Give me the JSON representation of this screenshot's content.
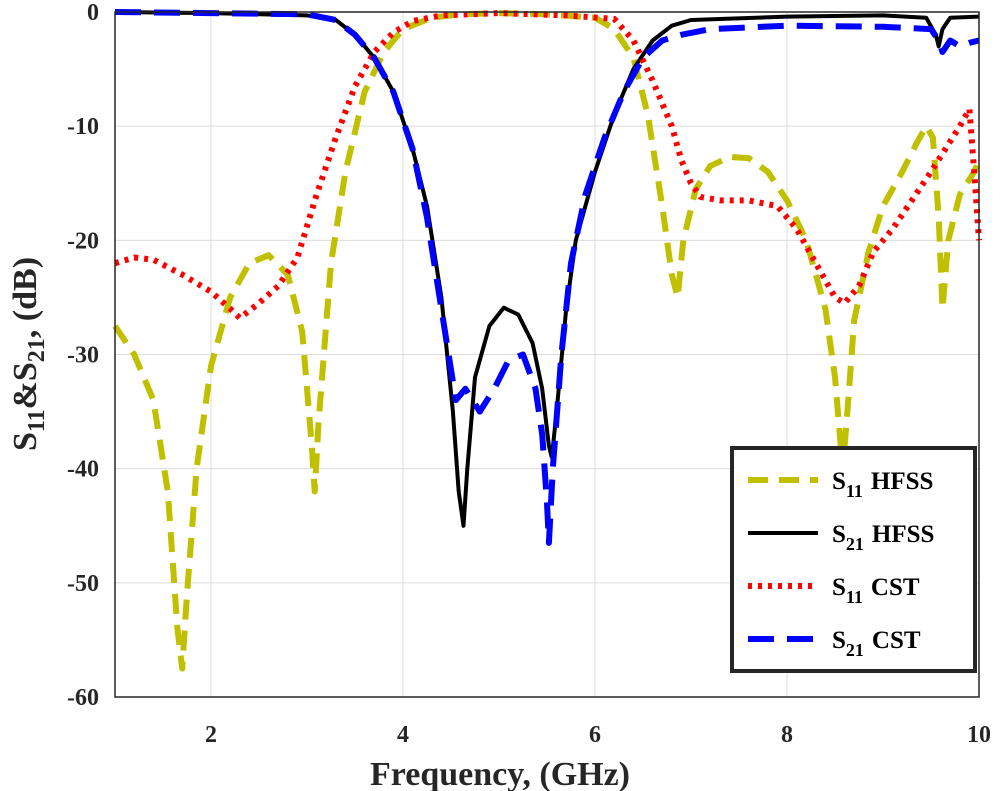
{
  "chart_data": {
    "type": "line",
    "title": "",
    "xlabel": "Frequency, (GHz)",
    "ylabel": {
      "base1": "S",
      "sub1": "11",
      "mid": "&S",
      "sub2": "21",
      "tail": ", (dB)"
    },
    "xlim": [
      1,
      10
    ],
    "ylim": [
      -60,
      0
    ],
    "xticks": [
      2,
      4,
      6,
      8,
      10
    ],
    "yticks": [
      0,
      -10,
      -20,
      -30,
      -40,
      -50,
      -60
    ],
    "grid": true,
    "legend_position": "bottom-right",
    "series": [
      {
        "name": "S11 HFSS",
        "base": "S",
        "sub": "11",
        "solver": "HFSS",
        "color": "#c0c000",
        "style": "dashed",
        "points": [
          [
            1.0,
            -27.5
          ],
          [
            1.2,
            -30
          ],
          [
            1.4,
            -34
          ],
          [
            1.55,
            -42
          ],
          [
            1.65,
            -54
          ],
          [
            1.7,
            -57.5
          ],
          [
            1.75,
            -51
          ],
          [
            1.85,
            -40
          ],
          [
            2.0,
            -31
          ],
          [
            2.2,
            -25
          ],
          [
            2.4,
            -22
          ],
          [
            2.6,
            -21.3
          ],
          [
            2.8,
            -23
          ],
          [
            2.95,
            -28
          ],
          [
            3.05,
            -38
          ],
          [
            3.08,
            -42
          ],
          [
            3.12,
            -36
          ],
          [
            3.25,
            -22
          ],
          [
            3.4,
            -14
          ],
          [
            3.6,
            -7
          ],
          [
            3.8,
            -3.5
          ],
          [
            4.0,
            -1.5
          ],
          [
            4.3,
            -0.5
          ],
          [
            4.6,
            -0.2
          ],
          [
            5.0,
            -0.1
          ],
          [
            5.5,
            -0.2
          ],
          [
            6.0,
            -0.5
          ],
          [
            6.2,
            -1.5
          ],
          [
            6.4,
            -4
          ],
          [
            6.55,
            -9
          ],
          [
            6.7,
            -17
          ],
          [
            6.8,
            -23
          ],
          [
            6.86,
            -25
          ],
          [
            6.92,
            -20
          ],
          [
            7.05,
            -15.5
          ],
          [
            7.2,
            -13.5
          ],
          [
            7.4,
            -12.7
          ],
          [
            7.6,
            -12.8
          ],
          [
            7.8,
            -14
          ],
          [
            8.0,
            -16.5
          ],
          [
            8.2,
            -20
          ],
          [
            8.4,
            -26
          ],
          [
            8.5,
            -32
          ],
          [
            8.58,
            -40
          ],
          [
            8.62,
            -36
          ],
          [
            8.7,
            -27
          ],
          [
            8.85,
            -21
          ],
          [
            9.0,
            -17
          ],
          [
            9.2,
            -14
          ],
          [
            9.35,
            -11.5
          ],
          [
            9.45,
            -10
          ],
          [
            9.52,
            -11
          ],
          [
            9.58,
            -18
          ],
          [
            9.62,
            -26
          ],
          [
            9.68,
            -20
          ],
          [
            9.8,
            -16
          ],
          [
            9.95,
            -14
          ],
          [
            10.0,
            -13
          ]
        ]
      },
      {
        "name": "S21 HFSS",
        "base": "S",
        "sub": "21",
        "solver": "HFSS",
        "color": "#000000",
        "style": "solid",
        "points": [
          [
            1.0,
            0
          ],
          [
            2.0,
            -0.1
          ],
          [
            3.0,
            -0.3
          ],
          [
            3.3,
            -0.7
          ],
          [
            3.5,
            -2
          ],
          [
            3.7,
            -4
          ],
          [
            3.9,
            -7
          ],
          [
            4.1,
            -12
          ],
          [
            4.25,
            -17
          ],
          [
            4.4,
            -25
          ],
          [
            4.52,
            -35
          ],
          [
            4.58,
            -42
          ],
          [
            4.63,
            -45
          ],
          [
            4.67,
            -40
          ],
          [
            4.75,
            -32
          ],
          [
            4.9,
            -27.5
          ],
          [
            5.05,
            -25.9
          ],
          [
            5.2,
            -26.5
          ],
          [
            5.35,
            -29
          ],
          [
            5.45,
            -33
          ],
          [
            5.52,
            -38
          ],
          [
            5.55,
            -39
          ],
          [
            5.6,
            -35
          ],
          [
            5.7,
            -26
          ],
          [
            5.8,
            -20
          ],
          [
            6.0,
            -14
          ],
          [
            6.2,
            -9
          ],
          [
            6.4,
            -5
          ],
          [
            6.6,
            -2.5
          ],
          [
            6.8,
            -1.2
          ],
          [
            7.0,
            -0.7
          ],
          [
            8.0,
            -0.4
          ],
          [
            9.0,
            -0.3
          ],
          [
            9.45,
            -0.5
          ],
          [
            9.55,
            -2
          ],
          [
            9.58,
            -3
          ],
          [
            9.62,
            -1.5
          ],
          [
            9.7,
            -0.5
          ],
          [
            10.0,
            -0.4
          ]
        ]
      },
      {
        "name": "S11 CST",
        "base": "S",
        "sub": "11",
        "solver": "CST",
        "color": "#ff0000",
        "style": "dotted",
        "points": [
          [
            1.0,
            -22
          ],
          [
            1.2,
            -21.5
          ],
          [
            1.4,
            -21.7
          ],
          [
            1.7,
            -23
          ],
          [
            2.0,
            -24.5
          ],
          [
            2.2,
            -26
          ],
          [
            2.3,
            -26.8
          ],
          [
            2.5,
            -25.5
          ],
          [
            2.7,
            -24
          ],
          [
            2.9,
            -21.5
          ],
          [
            3.1,
            -16
          ],
          [
            3.3,
            -11
          ],
          [
            3.5,
            -6.5
          ],
          [
            3.7,
            -3.5
          ],
          [
            3.9,
            -1.8
          ],
          [
            4.1,
            -0.8
          ],
          [
            4.4,
            -0.3
          ],
          [
            5.0,
            -0.1
          ],
          [
            5.7,
            -0.3
          ],
          [
            6.2,
            -0.6
          ],
          [
            6.4,
            -2.5
          ],
          [
            6.6,
            -6
          ],
          [
            6.8,
            -10
          ],
          [
            6.9,
            -13
          ],
          [
            7.0,
            -15
          ],
          [
            7.1,
            -16.2
          ],
          [
            7.3,
            -16.5
          ],
          [
            7.6,
            -16.5
          ],
          [
            7.9,
            -17
          ],
          [
            8.1,
            -19
          ],
          [
            8.3,
            -22
          ],
          [
            8.5,
            -25
          ],
          [
            8.6,
            -25.5
          ],
          [
            8.75,
            -24
          ],
          [
            8.9,
            -21
          ],
          [
            9.1,
            -19
          ],
          [
            9.3,
            -16.5
          ],
          [
            9.5,
            -14
          ],
          [
            9.65,
            -12
          ],
          [
            9.8,
            -10
          ],
          [
            9.9,
            -8.5
          ],
          [
            9.95,
            -14
          ],
          [
            10.0,
            -20
          ]
        ]
      },
      {
        "name": "S21 CST",
        "base": "S",
        "sub": "21",
        "solver": "CST",
        "color": "#0000ff",
        "style": "dashed",
        "points": [
          [
            1.0,
            0
          ],
          [
            2.0,
            -0.1
          ],
          [
            3.0,
            -0.2
          ],
          [
            3.3,
            -0.7
          ],
          [
            3.5,
            -2
          ],
          [
            3.7,
            -4
          ],
          [
            3.9,
            -7
          ],
          [
            4.1,
            -12
          ],
          [
            4.25,
            -18
          ],
          [
            4.4,
            -26
          ],
          [
            4.55,
            -34
          ],
          [
            4.65,
            -33
          ],
          [
            4.8,
            -35
          ],
          [
            4.95,
            -33
          ],
          [
            5.1,
            -30.5
          ],
          [
            5.25,
            -30
          ],
          [
            5.38,
            -33
          ],
          [
            5.45,
            -37
          ],
          [
            5.5,
            -43
          ],
          [
            5.52,
            -46.5
          ],
          [
            5.56,
            -40
          ],
          [
            5.65,
            -30
          ],
          [
            5.75,
            -22
          ],
          [
            5.9,
            -16
          ],
          [
            6.1,
            -11
          ],
          [
            6.3,
            -7
          ],
          [
            6.5,
            -4
          ],
          [
            6.7,
            -2.5
          ],
          [
            6.9,
            -2
          ],
          [
            7.2,
            -1.5
          ],
          [
            8.0,
            -1.2
          ],
          [
            9.0,
            -1.3
          ],
          [
            9.5,
            -1.5
          ],
          [
            9.58,
            -2.5
          ],
          [
            9.62,
            -3.5
          ],
          [
            9.7,
            -2.5
          ],
          [
            9.8,
            -3
          ],
          [
            9.9,
            -2.7
          ],
          [
            10.0,
            -2.5
          ]
        ]
      }
    ]
  }
}
